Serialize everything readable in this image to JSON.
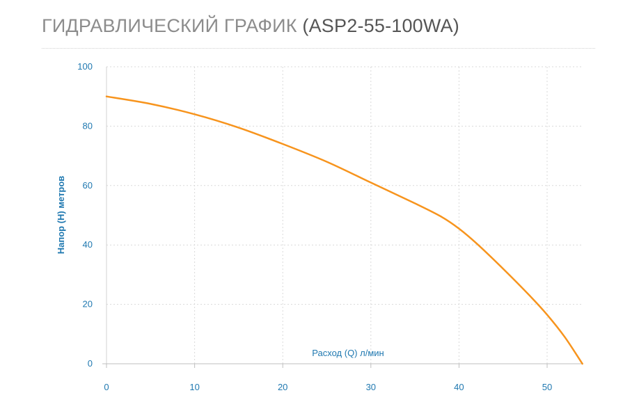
{
  "header": {
    "title_main": "ГИДРАВЛИЧЕСКИЙ ГРАФИК",
    "title_model": "(ASP2-55-100WA)"
  },
  "colors": {
    "curve": "#f7941d",
    "axis_text": "#1f78b0",
    "grid": "#d9d9d9",
    "title": "#8c8c8c"
  },
  "chart_data": {
    "type": "line",
    "title": "ГИДРАВЛИЧЕСКИЙ ГРАФИК (ASP2-55-100WA)",
    "xlabel": "Расход (Q) л/мин",
    "ylabel": "Напор (H) метров",
    "xlim": [
      0,
      55
    ],
    "ylim": [
      0,
      100
    ],
    "xticks": [
      0,
      10,
      20,
      30,
      40,
      50
    ],
    "yticks": [
      0,
      20,
      40,
      60,
      80,
      100
    ],
    "grid": true,
    "series": [
      {
        "x": [
          0,
          5,
          10,
          15,
          20,
          25,
          30,
          35,
          38,
          40,
          42,
          45,
          48,
          50,
          52,
          54
        ],
        "values": [
          90,
          87.5,
          84,
          79.5,
          74,
          68,
          61,
          54,
          49.5,
          45.5,
          40.5,
          32,
          23,
          16.5,
          9,
          0
        ]
      }
    ]
  }
}
